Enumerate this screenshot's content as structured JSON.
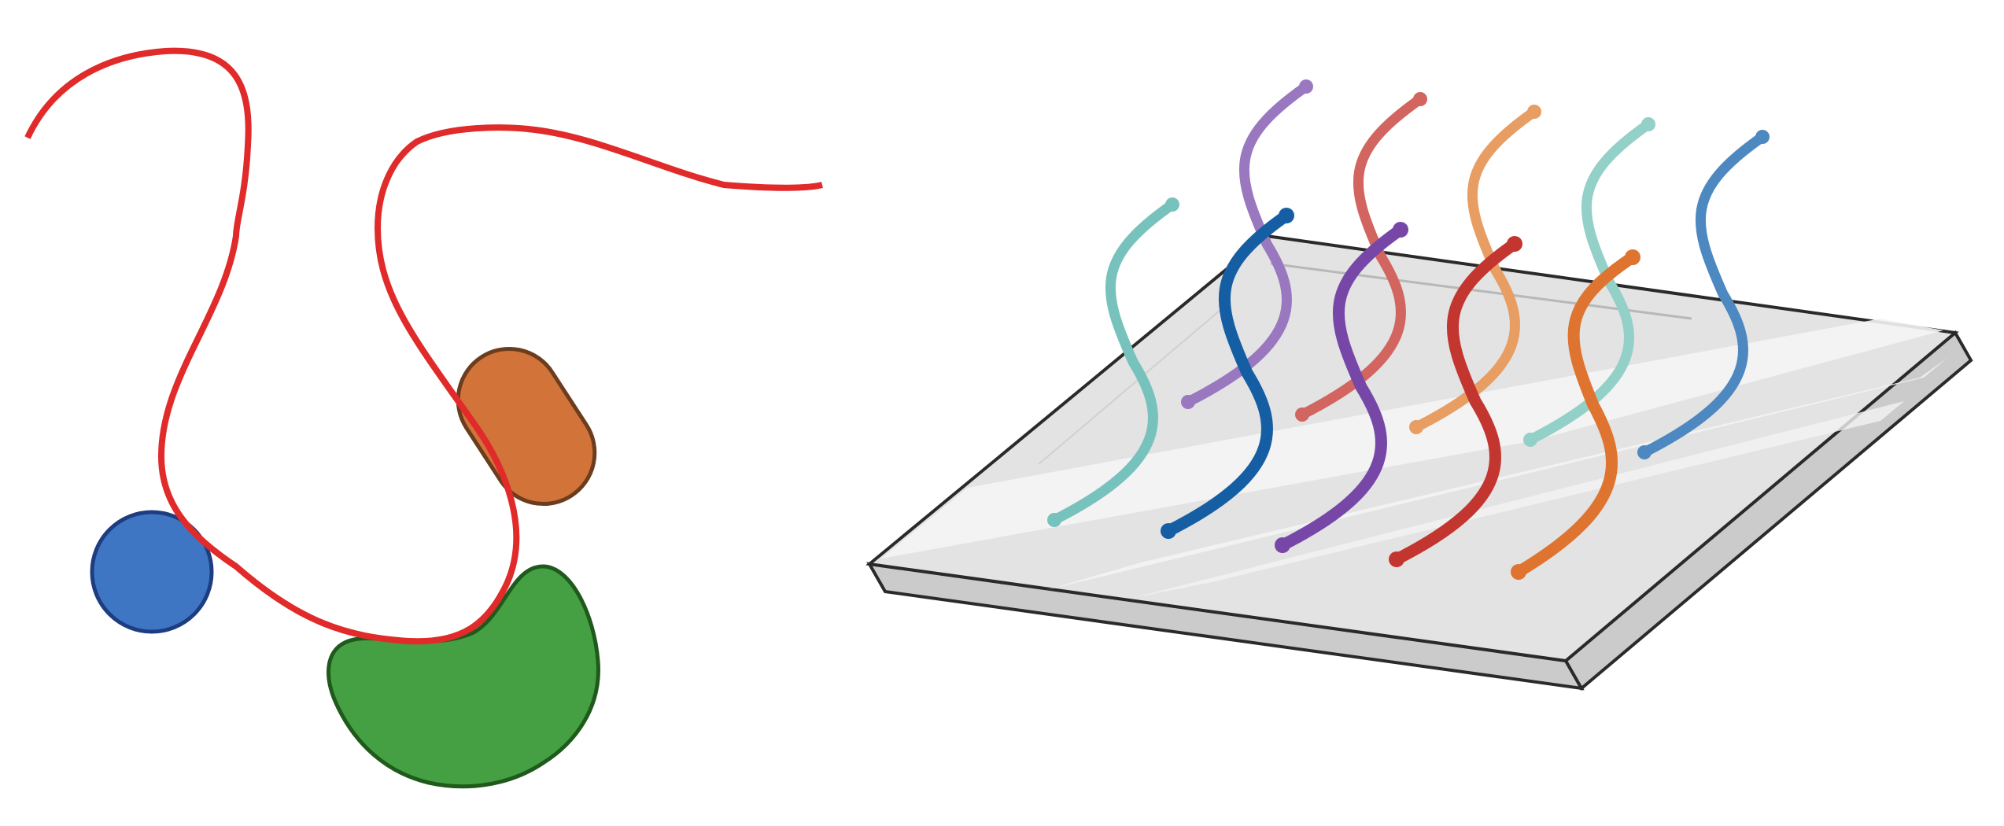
{
  "colors": {
    "background": "#ffffff",
    "red_chain": "#e12a2a",
    "blue_sphere": "#3f76c4",
    "blue_sphere_border": "#1d3d80",
    "orange_capsule": "#d2733a",
    "orange_capsule_border": "#6b3d1e",
    "green_blob": "#44a043",
    "green_blob_border": "#1f5a1c",
    "slab_top": "#e3e3e3",
    "slab_side": "#cbcbcb",
    "slab_edge": "#2a2a2a"
  },
  "left_panel": {
    "elements": [
      "red-polymer-chain",
      "blue-sphere",
      "orange-capsule",
      "green-blob"
    ]
  },
  "right_panel": {
    "back_row_colors": [
      "#78c2bd",
      "#9a78c0",
      "#d2655f",
      "#e89d62",
      "#93d0c8",
      "#4d88c0"
    ],
    "front_row_colors": [
      "#165ea3",
      "#7747a8",
      "#c3362f",
      "#de7430"
    ]
  }
}
